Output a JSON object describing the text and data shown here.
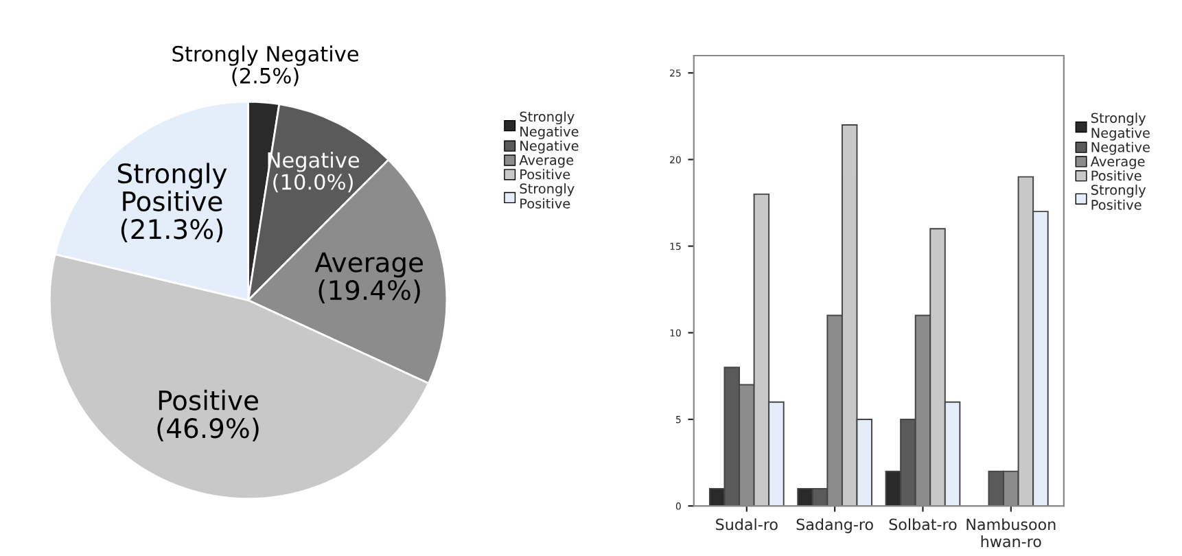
{
  "chart_data": [
    {
      "type": "pie",
      "categories": [
        "Strongly Negative",
        "Negative",
        "Average",
        "Positive",
        "Strongly Positive"
      ],
      "values": [
        2.5,
        10.0,
        19.4,
        46.9,
        21.3
      ],
      "value_labels": [
        "(2.5%)",
        "(10.0%)",
        "(19.4%)",
        "(46.9%)",
        "(21.3%)"
      ],
      "colors": [
        "#2a2a2a",
        "#5a5a5a",
        "#8c8c8c",
        "#c8c8c8",
        "#e4eefa"
      ],
      "legend": "right"
    },
    {
      "type": "bar",
      "categories": [
        "Sudal-ro",
        "Sadang-ro",
        "Solbat-ro",
        "Nambusoon hwan-ro"
      ],
      "series": [
        {
          "name": "Strongly Negative",
          "color": "#2a2a2a",
          "values": [
            1,
            1,
            2,
            null
          ]
        },
        {
          "name": "Negative",
          "color": "#5a5a5a",
          "values": [
            8,
            1,
            5,
            2
          ]
        },
        {
          "name": "Average",
          "color": "#8c8c8c",
          "values": [
            7,
            11,
            11,
            2
          ]
        },
        {
          "name": "Positive",
          "color": "#c8c8c8",
          "values": [
            18,
            22,
            16,
            19
          ]
        },
        {
          "name": "Strongly Positive",
          "color": "#e4eefa",
          "values": [
            6,
            5,
            6,
            17
          ]
        }
      ],
      "ylim": [
        0,
        26
      ],
      "yticks": [
        0,
        5,
        10,
        15,
        20,
        25
      ],
      "legend": "right",
      "grid": false
    }
  ]
}
